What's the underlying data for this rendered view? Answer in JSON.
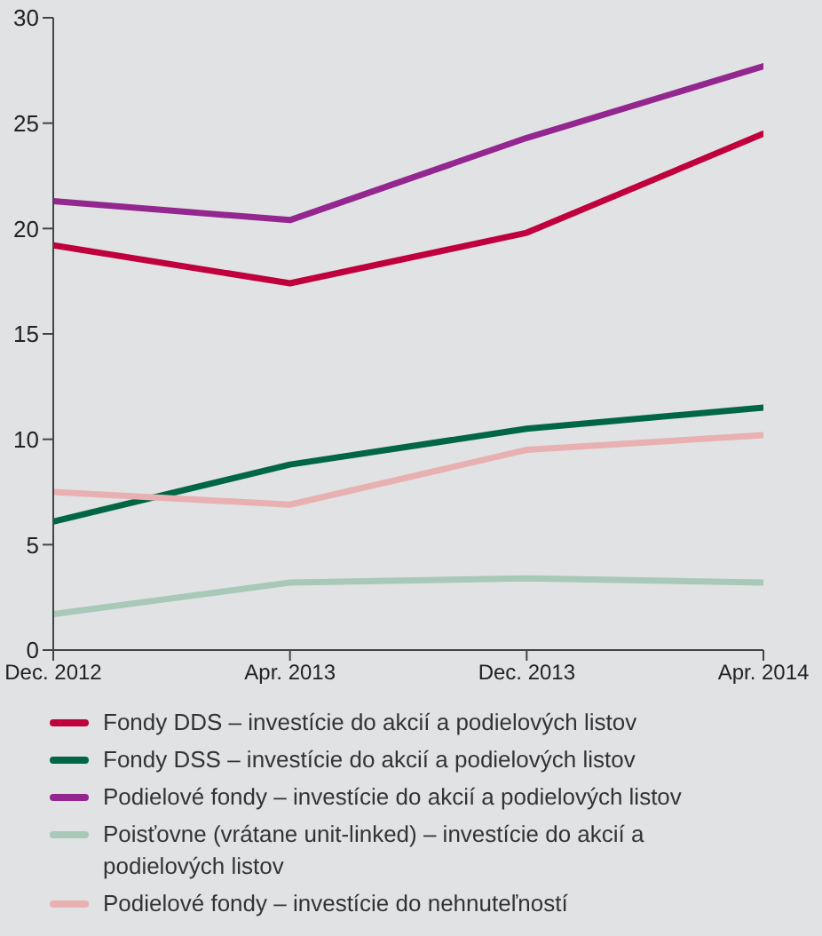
{
  "chart_data": {
    "type": "line",
    "categories": [
      "Dec. 2012",
      "Apr. 2013",
      "Dec. 2013",
      "Apr. 2014"
    ],
    "ylim": [
      0,
      30
    ],
    "yticks": [
      0,
      5,
      10,
      15,
      20,
      25,
      30
    ],
    "grid": false,
    "legend": "bottom",
    "marker": "none",
    "line_style": "solid",
    "series": [
      {
        "name": "Fondy DDS – investície do akcií a podielových listov",
        "color": "#c0003c",
        "values": [
          19.2,
          17.4,
          19.8,
          24.5
        ]
      },
      {
        "name": "Fondy DSS – investície do akcií a podielových listov",
        "color": "#006644",
        "values": [
          6.1,
          8.8,
          10.5,
          11.5
        ]
      },
      {
        "name": "Podielové fondy – investície do akcií a podielových listov",
        "color": "#93278f",
        "values": [
          21.3,
          20.4,
          24.3,
          27.7
        ]
      },
      {
        "name": "Poisťovne (vrátane unit-linked) – investície do akcií a podielových listov",
        "color": "#a8c8b8",
        "values": [
          1.7,
          3.2,
          3.4,
          3.2
        ]
      },
      {
        "name": "Podielové fondy – investície do nehnuteľností",
        "color": "#e8b0b0",
        "values": [
          7.5,
          6.9,
          9.5,
          10.2
        ]
      }
    ]
  }
}
